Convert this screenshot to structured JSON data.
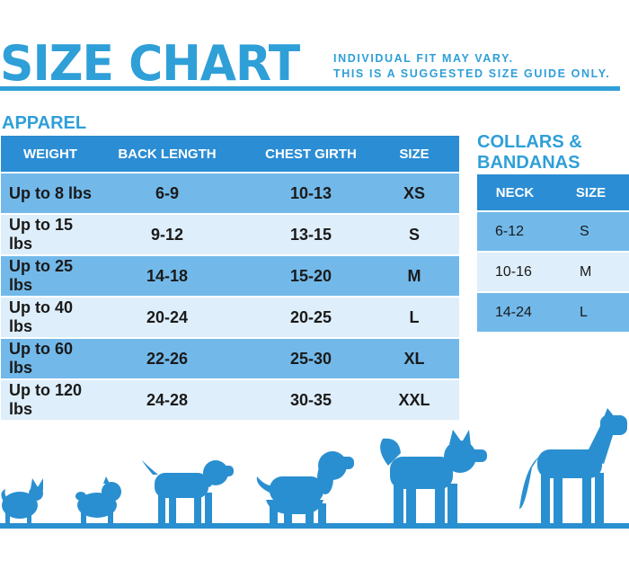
{
  "header": {
    "title": "SIZE CHART",
    "note_line1": "INDIVIDUAL FIT MAY VARY.",
    "note_line2": "THIS IS A SUGGESTED SIZE GUIDE ONLY."
  },
  "apparel": {
    "title": "APPAREL",
    "columns": [
      "WEIGHT",
      "BACK LENGTH",
      "CHEST GIRTH",
      "SIZE"
    ],
    "rows": [
      [
        "Up to 8 lbs",
        "6-9",
        "10-13",
        "XS"
      ],
      [
        "Up to 15 lbs",
        "9-12",
        "13-15",
        "S"
      ],
      [
        "Up to 25 lbs",
        "14-18",
        "15-20",
        "M"
      ],
      [
        "Up to 40 lbs",
        "20-24",
        "20-25",
        "L"
      ],
      [
        "Up to 60 lbs",
        "22-26",
        "25-30",
        "XL"
      ],
      [
        "Up to 120 lbs",
        "24-28",
        "30-35",
        "XXL"
      ]
    ]
  },
  "collars": {
    "title_line1": "COLLARS &",
    "title_line2": "BANDANAS",
    "columns": [
      "NECK",
      "SIZE"
    ],
    "rows": [
      [
        "6-12",
        "S"
      ],
      [
        "10-16",
        "M"
      ],
      [
        "14-24",
        "L"
      ]
    ]
  },
  "colors": {
    "brand": "#2f9fd8",
    "header_row": "#2b8dd4",
    "row_dark": "#72b9ea",
    "row_light": "#deeefa",
    "dogs": "#2a8fd0"
  },
  "illustration": {
    "icons": [
      "chihuahua-icon",
      "pug-icon",
      "beagle-icon",
      "spaniel-icon",
      "husky-icon",
      "great-dane-icon"
    ]
  }
}
